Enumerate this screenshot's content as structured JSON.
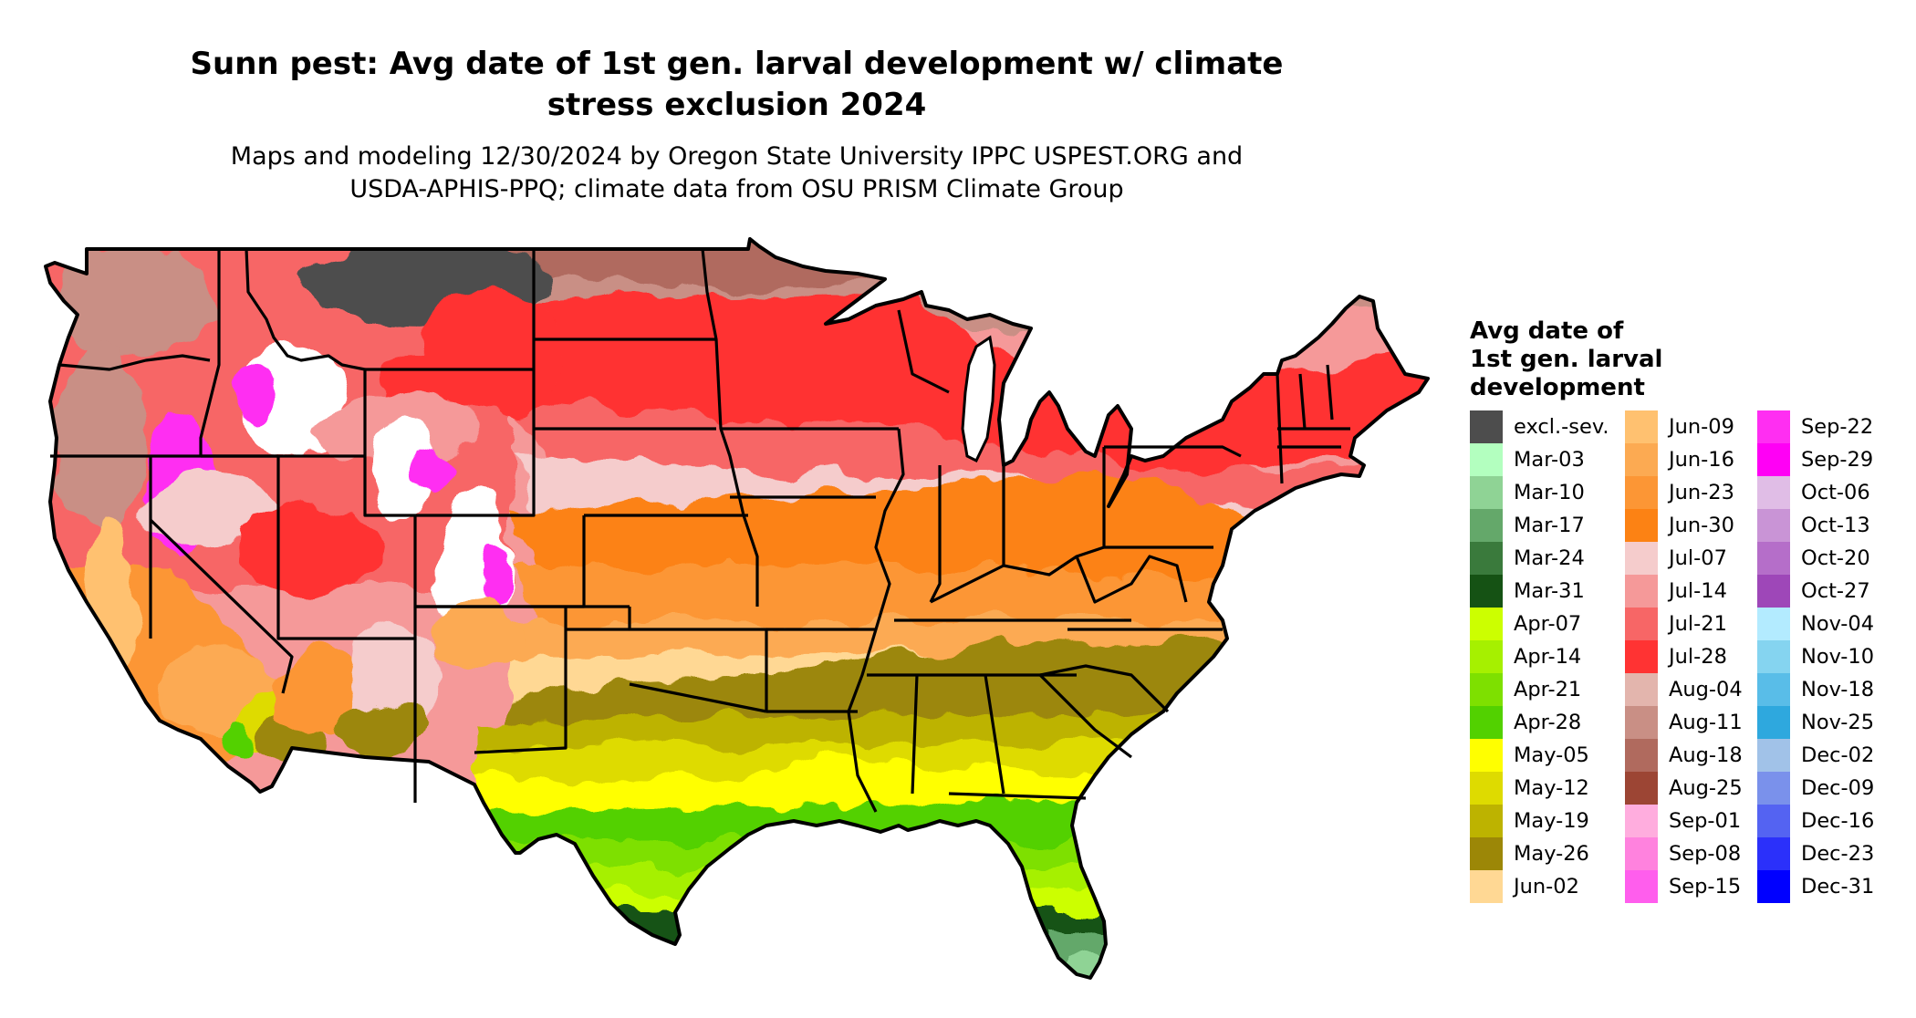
{
  "title": {
    "line1": "Sunn pest: Avg date of 1st gen. larval development w/ climate",
    "line2": "stress exclusion 2024"
  },
  "subtitle": {
    "line1": "Maps and modeling 12/30/2024 by Oregon State University IPPC USPEST.ORG and",
    "line2": "USDA-APHIS-PPQ; climate data from OSU PRISM Climate Group"
  },
  "legend": {
    "title_lines": [
      "Avg date of",
      "1st gen. larval",
      "development"
    ],
    "columns": [
      [
        {
          "label": "excl.-sev.",
          "color": "#4d4d4d"
        },
        {
          "label": "Mar-03",
          "color": "#b3ffbf"
        },
        {
          "label": "Mar-10",
          "color": "#8fd395"
        },
        {
          "label": "Mar-17",
          "color": "#64a86a"
        },
        {
          "label": "Mar-24",
          "color": "#3a7a3c"
        },
        {
          "label": "Mar-31",
          "color": "#155214"
        },
        {
          "label": "Apr-07",
          "color": "#ccff00"
        },
        {
          "label": "Apr-14",
          "color": "#a6f000"
        },
        {
          "label": "Apr-21",
          "color": "#7ee000"
        },
        {
          "label": "Apr-28",
          "color": "#52d100"
        },
        {
          "label": "May-05",
          "color": "#ffff00"
        },
        {
          "label": "May-12",
          "color": "#dedb00"
        },
        {
          "label": "May-19",
          "color": "#bdb300"
        },
        {
          "label": "May-26",
          "color": "#9c8707"
        },
        {
          "label": "Jun-02",
          "color": "#ffd894"
        }
      ],
      [
        {
          "label": "Jun-09",
          "color": "#ffc170"
        },
        {
          "label": "Jun-16",
          "color": "#fcaa52"
        },
        {
          "label": "Jun-23",
          "color": "#fc9635"
        },
        {
          "label": "Jun-30",
          "color": "#fc8214"
        },
        {
          "label": "Jul-07",
          "color": "#f5cccc"
        },
        {
          "label": "Jul-14",
          "color": "#f59999"
        },
        {
          "label": "Jul-21",
          "color": "#f76666"
        },
        {
          "label": "Jul-28",
          "color": "#ff3333"
        },
        {
          "label": "Aug-04",
          "color": "#e3b5ad"
        },
        {
          "label": "Aug-11",
          "color": "#c98f85"
        },
        {
          "label": "Aug-18",
          "color": "#b06a5e"
        },
        {
          "label": "Aug-25",
          "color": "#9c4534"
        },
        {
          "label": "Sep-01",
          "color": "#ffadde"
        },
        {
          "label": "Sep-08",
          "color": "#ff82de"
        },
        {
          "label": "Sep-15",
          "color": "#ff5eed"
        }
      ],
      [
        {
          "label": "Sep-22",
          "color": "#ff2ef2"
        },
        {
          "label": "Sep-29",
          "color": "#ff00f5"
        },
        {
          "label": "Oct-06",
          "color": "#e0bde6"
        },
        {
          "label": "Oct-13",
          "color": "#c994d6"
        },
        {
          "label": "Oct-20",
          "color": "#b56ec9"
        },
        {
          "label": "Oct-27",
          "color": "#9e47b8"
        },
        {
          "label": "Nov-04",
          "color": "#b3ebff"
        },
        {
          "label": "Nov-10",
          "color": "#85d4f0"
        },
        {
          "label": "Nov-18",
          "color": "#59bde8"
        },
        {
          "label": "Nov-25",
          "color": "#2ea8de"
        },
        {
          "label": "Dec-02",
          "color": "#a1c2e8"
        },
        {
          "label": "Dec-09",
          "color": "#7a91eb"
        },
        {
          "label": "Dec-16",
          "color": "#5463f2"
        },
        {
          "label": "Dec-23",
          "color": "#2b30fa"
        },
        {
          "label": "Dec-31",
          "color": "#0000ff"
        }
      ]
    ]
  },
  "map": {
    "region": "Contiguous United States",
    "excluded_color": "#4d4d4d",
    "no_data_color": "#ffffff",
    "border_color": "#000000"
  }
}
